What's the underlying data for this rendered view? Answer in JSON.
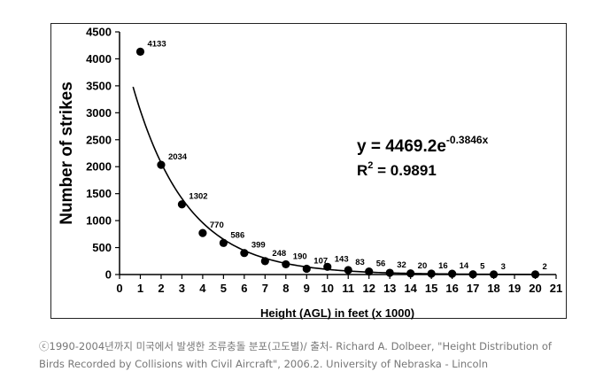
{
  "chart_data": {
    "type": "scatter",
    "title": "",
    "xlabel": "Height (AGL) in feet (x 1000)",
    "ylabel": "Number of strikes",
    "xlim": [
      0,
      21
    ],
    "ylim": [
      0,
      4500
    ],
    "xticks": [
      "0",
      "1",
      "2",
      "3",
      "4",
      "5",
      "6",
      "7",
      "8",
      "9",
      "10",
      "11",
      "12",
      "13",
      "14",
      "15",
      "16",
      "17",
      "18",
      "19",
      "20",
      "21"
    ],
    "yticks": [
      "0",
      "500",
      "1000",
      "1500",
      "2000",
      "2500",
      "3000",
      "3500",
      "4000",
      "4500"
    ],
    "grid": false,
    "legend": "none",
    "series": [
      {
        "x": [
          1,
          2,
          3,
          4,
          5,
          6,
          7,
          8,
          9,
          10,
          11,
          12,
          13,
          14,
          15,
          16,
          17,
          18,
          20
        ],
        "values": [
          4133,
          2034,
          1302,
          770,
          586,
          399,
          248,
          190,
          107,
          143,
          83,
          56,
          32,
          20,
          16,
          14,
          5,
          3,
          2
        ],
        "data_labels": [
          "4133",
          "2034",
          "1302",
          "770",
          "586",
          "399",
          "248",
          "190",
          "107",
          "143",
          "83",
          "56",
          "32",
          "20",
          "16",
          "14",
          "5",
          "3",
          "2"
        ],
        "color": "#000000"
      }
    ],
    "trendline": {
      "type": "exponential",
      "a": 4469.2,
      "b": -0.3846,
      "x_range": [
        0.65,
        20
      ],
      "equation_main": "y = 4469.2e",
      "equation_exp": "-0.3846x",
      "r2_main": "R",
      "r2_sup": "2",
      "r2_value": " = 0.9891"
    }
  },
  "caption": {
    "line1": "ⓒ1990-2004년까지 미국에서 발생한 조류충돌 분포(고도별)/ 출처- Richard A. Dolbeer, \"Height Distribution of",
    "line2": "Birds Recorded by Collisions with Civil Aircraft\", 2006.2. University of Nebraska - Lincoln"
  }
}
